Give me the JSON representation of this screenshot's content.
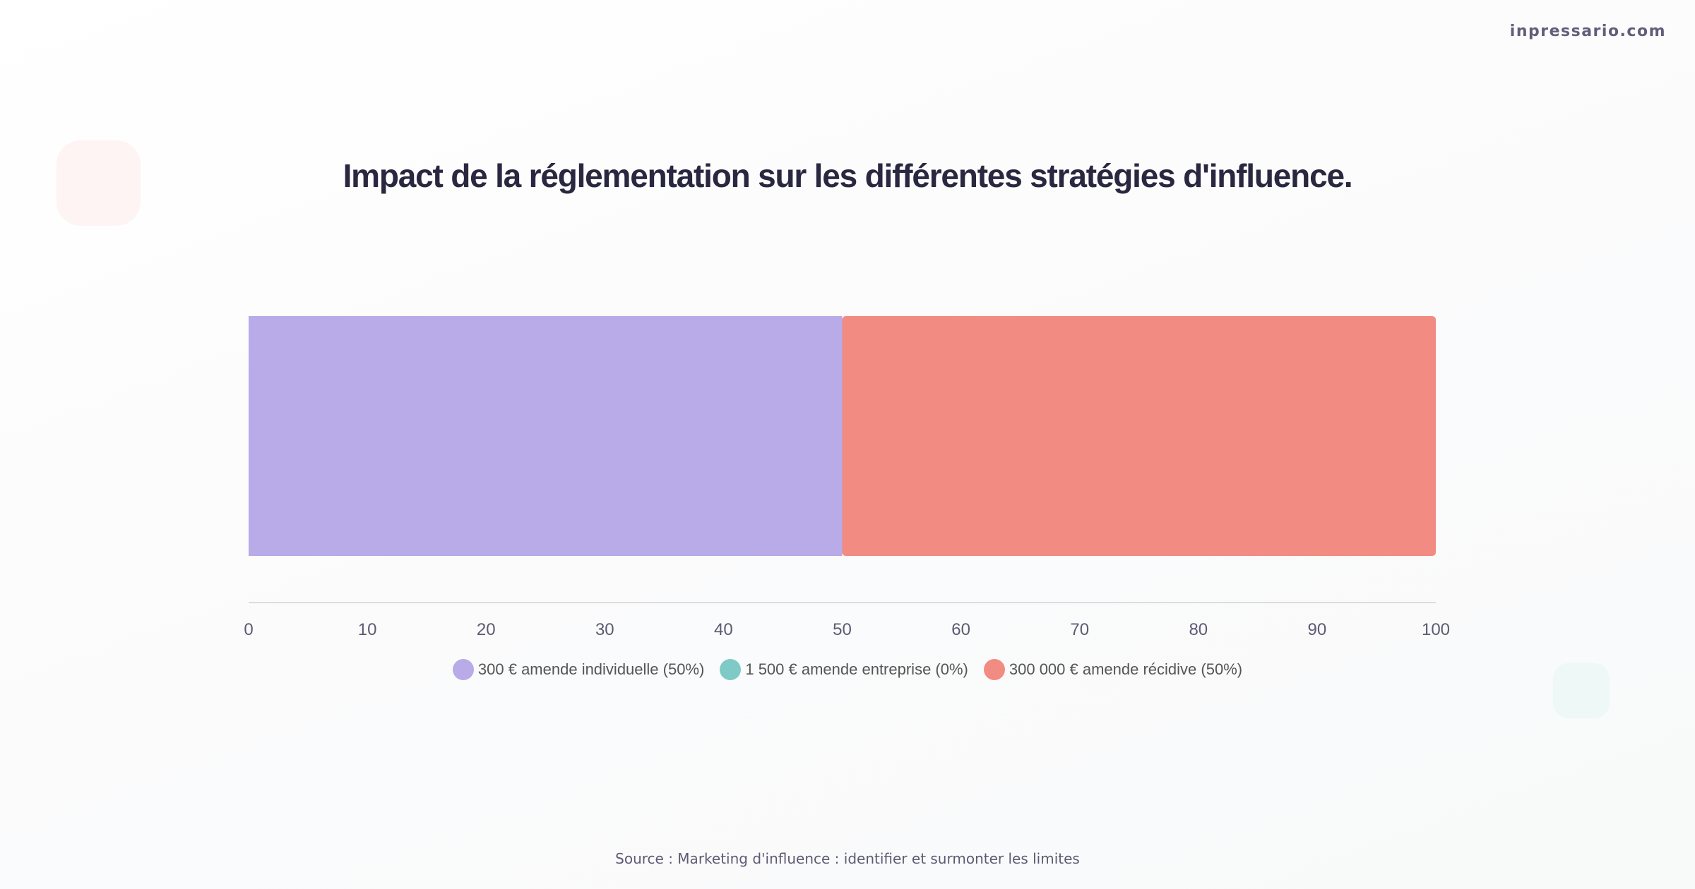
{
  "brand": "inpressario.com",
  "title": "Impact de la réglementation sur les différentes stratégies d'influence.",
  "source": "Source : Marketing d'influence : identifier et surmonter les limites",
  "chart_data": {
    "type": "bar",
    "orientation": "horizontal",
    "stacked": true,
    "title": "Impact de la réglementation sur les différentes stratégies d'influence.",
    "xlim": [
      0,
      100
    ],
    "xticks": [
      "0",
      "10",
      "20",
      "30",
      "40",
      "50",
      "60",
      "70",
      "80",
      "90",
      "100"
    ],
    "grid": false,
    "legend_position": "bottom",
    "series": [
      {
        "name": "300 € amende individuelle (50%)",
        "values": [
          50
        ],
        "color": "#b8abe7"
      },
      {
        "name": "1 500 € amende entreprise (0%)",
        "values": [
          0
        ],
        "color": "#7fcac6"
      },
      {
        "name": "300 000 € amende récidive (50%)",
        "values": [
          50
        ],
        "color": "#f28b81"
      }
    ]
  }
}
